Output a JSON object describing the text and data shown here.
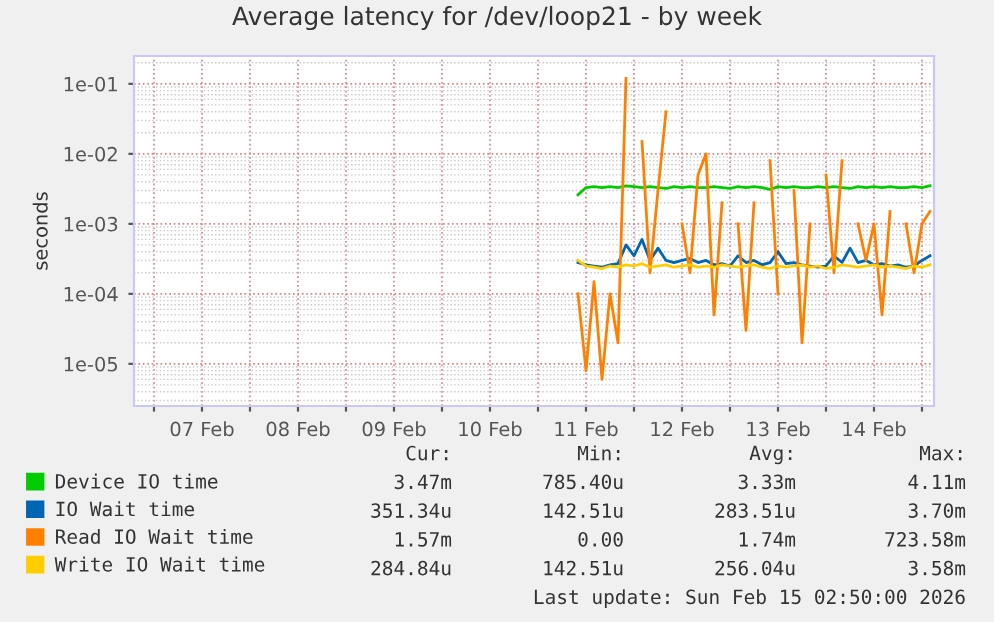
{
  "chart_data": {
    "type": "line",
    "title": "Average latency for /dev/loop21 - by week",
    "ylabel": "seconds",
    "log": "y",
    "grid": true,
    "legend": "bottom",
    "marker": "none",
    "line_style": "solid",
    "xlim": [
      "2026-02-06T19:00",
      "2026-02-15T03:00"
    ],
    "xticks": [
      {
        "value": "2026-02-07T00:00",
        "label": null
      },
      {
        "value": "2026-02-07T12:00",
        "label": "07 Feb"
      },
      {
        "value": "2026-02-08T00:00",
        "label": null
      },
      {
        "value": "2026-02-08T12:00",
        "label": "08 Feb"
      },
      {
        "value": "2026-02-09T00:00",
        "label": null
      },
      {
        "value": "2026-02-09T12:00",
        "label": "09 Feb"
      },
      {
        "value": "2026-02-10T00:00",
        "label": null
      },
      {
        "value": "2026-02-10T12:00",
        "label": "10 Feb"
      },
      {
        "value": "2026-02-11T00:00",
        "label": null
      },
      {
        "value": "2026-02-11T12:00",
        "label": "11 Feb"
      },
      {
        "value": "2026-02-12T00:00",
        "label": null
      },
      {
        "value": "2026-02-12T12:00",
        "label": "12 Feb"
      },
      {
        "value": "2026-02-13T00:00",
        "label": null
      },
      {
        "value": "2026-02-13T12:00",
        "label": "13 Feb"
      },
      {
        "value": "2026-02-14T00:00",
        "label": null
      },
      {
        "value": "2026-02-14T12:00",
        "label": "14 Feb"
      },
      {
        "value": "2026-02-15T00:00",
        "label": null
      }
    ],
    "ylim": [
      2.5e-06,
      0.25
    ],
    "yticks": [
      {
        "value": 1e-05,
        "label": "1e-05"
      },
      {
        "value": 0.0001,
        "label": "1e-04"
      },
      {
        "value": 0.001,
        "label": "1e-03"
      },
      {
        "value": 0.01,
        "label": "1e-02"
      },
      {
        "value": 0.1,
        "label": "1e-01"
      }
    ],
    "x": [
      "2026-02-11T10:00",
      "2026-02-11T12:00",
      "2026-02-11T14:00",
      "2026-02-11T16:00",
      "2026-02-11T18:00",
      "2026-02-11T20:00",
      "2026-02-11T22:00",
      "2026-02-12T00:00",
      "2026-02-12T02:00",
      "2026-02-12T04:00",
      "2026-02-12T06:00",
      "2026-02-12T08:00",
      "2026-02-12T10:00",
      "2026-02-12T12:00",
      "2026-02-12T14:00",
      "2026-02-12T16:00",
      "2026-02-12T18:00",
      "2026-02-12T20:00",
      "2026-02-12T22:00",
      "2026-02-13T00:00",
      "2026-02-13T02:00",
      "2026-02-13T04:00",
      "2026-02-13T06:00",
      "2026-02-13T08:00",
      "2026-02-13T10:00",
      "2026-02-13T12:00",
      "2026-02-13T14:00",
      "2026-02-13T16:00",
      "2026-02-13T18:00",
      "2026-02-13T20:00",
      "2026-02-13T22:00",
      "2026-02-14T00:00",
      "2026-02-14T02:00",
      "2026-02-14T04:00",
      "2026-02-14T06:00",
      "2026-02-14T08:00",
      "2026-02-14T10:00",
      "2026-02-14T12:00",
      "2026-02-14T14:00",
      "2026-02-14T16:00",
      "2026-02-14T18:00",
      "2026-02-14T20:00",
      "2026-02-14T22:00",
      "2026-02-15T00:00",
      "2026-02-15T02:00"
    ],
    "series": [
      {
        "name": "Device IO time",
        "color": "#00cc00",
        "values": [
          0.0026,
          0.0033,
          0.0034,
          0.0033,
          0.0034,
          0.0033,
          0.0035,
          0.0034,
          0.0033,
          0.0034,
          0.0033,
          0.0032,
          0.0034,
          0.0033,
          0.0034,
          0.0033,
          0.0033,
          0.0034,
          0.0033,
          0.0032,
          0.0034,
          0.0033,
          0.0034,
          0.0033,
          0.0031,
          0.0034,
          0.0033,
          0.0034,
          0.0033,
          0.0033,
          0.0034,
          0.0033,
          0.0034,
          0.0033,
          0.0032,
          0.0034,
          0.0033,
          0.0034,
          0.0033,
          0.0034,
          0.0033,
          0.0033,
          0.0034,
          0.0033,
          0.0035
        ]
      },
      {
        "name": "IO Wait time",
        "color": "#0066b3",
        "values": [
          0.00028,
          0.00026,
          0.00025,
          0.00024,
          0.00026,
          0.00027,
          0.0005,
          0.00035,
          0.0006,
          0.0003,
          0.00045,
          0.0003,
          0.00028,
          0.0003,
          0.00032,
          0.00028,
          0.0003,
          0.00026,
          0.00027,
          0.00025,
          0.00035,
          0.00028,
          0.0003,
          0.00026,
          0.00028,
          0.0004,
          0.00027,
          0.00028,
          0.00026,
          0.00025,
          0.00024,
          0.00025,
          0.00035,
          0.00028,
          0.00045,
          0.00028,
          0.0003,
          0.00026,
          0.00027,
          0.00025,
          0.00026,
          0.00024,
          0.00025,
          0.0003,
          0.00035
        ]
      },
      {
        "name": "Read IO Wait time",
        "color": "#ff8000",
        "values": [
          0.0001,
          8e-06,
          0.00015,
          6e-06,
          0.0001,
          2e-05,
          0.12,
          null,
          0.015,
          0.0002,
          0.003,
          0.04,
          null,
          0.001,
          0.0002,
          0.005,
          0.01,
          5e-05,
          0.002,
          null,
          0.001,
          3e-05,
          0.002,
          null,
          0.008,
          0.0001,
          null,
          0.003,
          2e-05,
          0.001,
          null,
          0.005,
          0.0002,
          0.008,
          null,
          0.001,
          0.0003,
          0.001,
          5e-05,
          0.0015,
          null,
          0.001,
          0.0002,
          0.001,
          0.0015
        ]
      },
      {
        "name": "Write IO Wait time",
        "color": "#ffcc00",
        "values": [
          0.0003,
          0.00025,
          0.00024,
          0.00023,
          0.00025,
          0.00024,
          0.00026,
          0.00025,
          0.00027,
          0.00024,
          0.00025,
          0.00026,
          0.00024,
          0.00025,
          0.00026,
          0.00024,
          0.00025,
          0.00024,
          0.00026,
          0.00025,
          0.00024,
          0.00025,
          0.00026,
          0.00024,
          0.00023,
          0.00025,
          0.00024,
          0.00025,
          0.00026,
          0.00024,
          0.00025,
          0.00023,
          0.00024,
          0.00026,
          0.00025,
          0.00024,
          0.00025,
          0.00026,
          0.00024,
          0.00025,
          0.00024,
          0.00023,
          0.00025,
          0.00024,
          0.00026
        ]
      }
    ],
    "annotations": [
      "Cur:",
      "Min:",
      "Avg:",
      "Max:",
      "3.47m",
      "785.40u",
      "3.33m",
      "4.11m",
      "351.34u",
      "142.51u",
      "283.51u",
      "3.70m",
      "1.57m",
      "0.00",
      "1.74m",
      "723.58m",
      "284.84u",
      "142.51u",
      "256.04u",
      "3.58m",
      "Last update: Sun Feb 15 02:50:00 2026"
    ]
  }
}
